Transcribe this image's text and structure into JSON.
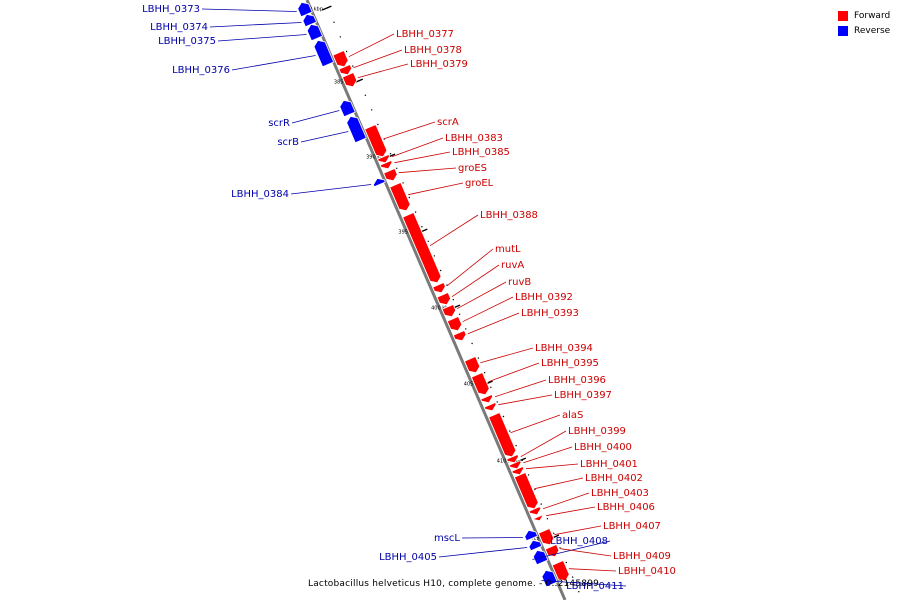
{
  "caption": "Lactobacillus helveticus H10, complete genome. - 0..2145899",
  "legend": [
    {
      "label": "Forward",
      "color": "#ff0000"
    },
    {
      "label": "Reverse",
      "color": "#0000ff"
    }
  ],
  "colors": {
    "forward": "#ff0000",
    "reverse": "#0000ff",
    "forward_label": "#cc0000",
    "reverse_label": "#0000aa",
    "axis": "#808080"
  },
  "ticks": [
    "380 kbp",
    "385 kbp",
    "390 kbp",
    "395 kbp",
    "400 kbp",
    "405 kbp",
    "410 kbp",
    "415 kbp"
  ],
  "genes": [
    {
      "name": "LBHH_0373",
      "strand": "reverse"
    },
    {
      "name": "LBHH_0374",
      "strand": "reverse"
    },
    {
      "name": "LBHH_0375",
      "strand": "reverse"
    },
    {
      "name": "LBHH_0376",
      "strand": "reverse"
    },
    {
      "name": "LBHH_0377",
      "strand": "forward"
    },
    {
      "name": "LBHH_0378",
      "strand": "forward"
    },
    {
      "name": "LBHH_0379",
      "strand": "forward"
    },
    {
      "name": "scrR",
      "strand": "reverse"
    },
    {
      "name": "scrB",
      "strand": "reverse"
    },
    {
      "name": "scrA",
      "strand": "forward"
    },
    {
      "name": "LBHH_0383",
      "strand": "forward"
    },
    {
      "name": "LBHH_0385",
      "strand": "forward"
    },
    {
      "name": "LBHH_0384",
      "strand": "reverse"
    },
    {
      "name": "groES",
      "strand": "forward"
    },
    {
      "name": "groEL",
      "strand": "forward"
    },
    {
      "name": "LBHH_0388",
      "strand": "forward"
    },
    {
      "name": "mutL",
      "strand": "forward"
    },
    {
      "name": "ruvA",
      "strand": "forward"
    },
    {
      "name": "ruvB",
      "strand": "forward"
    },
    {
      "name": "LBHH_0392",
      "strand": "forward"
    },
    {
      "name": "LBHH_0393",
      "strand": "forward"
    },
    {
      "name": "LBHH_0394",
      "strand": "forward"
    },
    {
      "name": "LBHH_0395",
      "strand": "forward"
    },
    {
      "name": "LBHH_0396",
      "strand": "forward"
    },
    {
      "name": "LBHH_0397",
      "strand": "forward"
    },
    {
      "name": "alaS",
      "strand": "forward"
    },
    {
      "name": "LBHH_0399",
      "strand": "forward"
    },
    {
      "name": "LBHH_0400",
      "strand": "forward"
    },
    {
      "name": "LBHH_0401",
      "strand": "forward"
    },
    {
      "name": "LBHH_0402",
      "strand": "forward"
    },
    {
      "name": "LBHH_0403",
      "strand": "forward"
    },
    {
      "name": "LBHH_0406",
      "strand": "forward"
    },
    {
      "name": "LBHH_0407",
      "strand": "forward"
    },
    {
      "name": "mscL",
      "strand": "reverse"
    },
    {
      "name": "LBHH_0408",
      "strand": "reverse"
    },
    {
      "name": "LBHH_0405",
      "strand": "reverse"
    },
    {
      "name": "LBHH_0409",
      "strand": "forward"
    },
    {
      "name": "LBHH_0410",
      "strand": "forward"
    },
    {
      "name": "LBHH_0411",
      "strand": "reverse"
    }
  ]
}
